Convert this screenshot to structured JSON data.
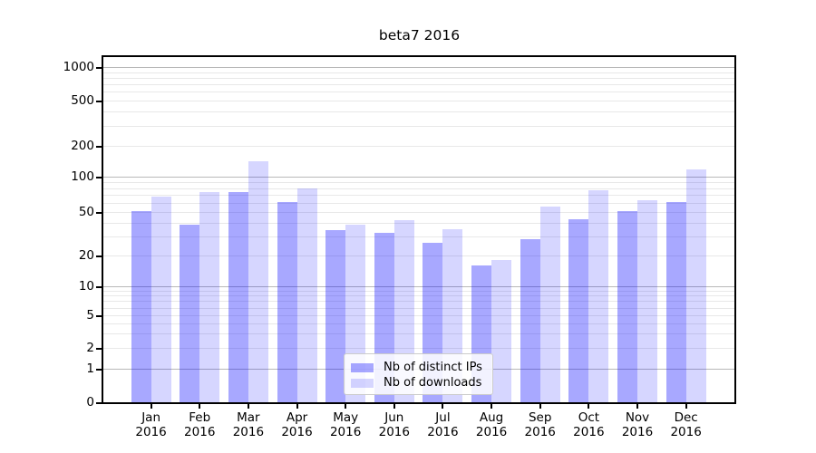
{
  "title": "beta7 2016",
  "legend": {
    "items": [
      {
        "label": "Nb of distinct IPs",
        "color": "rgba(0,0,255,0.34)"
      },
      {
        "label": "Nb of downloads",
        "color": "rgba(0,0,255,0.16)"
      }
    ]
  },
  "chart_data": {
    "type": "bar",
    "title": "beta7 2016",
    "categories": [
      "Jan",
      "Feb",
      "Mar",
      "Apr",
      "May",
      "Jun",
      "Jul",
      "Aug",
      "Sep",
      "Oct",
      "Nov",
      "Dec"
    ],
    "year_label": "2016",
    "series": [
      {
        "name": "Nb of distinct IPs",
        "color": "rgba(0,0,255,0.34)",
        "values": [
          51,
          38,
          74,
          61,
          34,
          32,
          26,
          16,
          28,
          43,
          51,
          61
        ]
      },
      {
        "name": "Nb of downloads",
        "color": "rgba(0,0,255,0.16)",
        "values": [
          68,
          74,
          140,
          80,
          38,
          42,
          35,
          18,
          56,
          76,
          63,
          118
        ]
      }
    ],
    "y_axis": {
      "scale": "symlog",
      "ticks": [
        0,
        1,
        2,
        5,
        10,
        20,
        50,
        100,
        200,
        500,
        1000
      ],
      "tick_labels": [
        "0",
        "1",
        "2",
        "5",
        "10",
        "20",
        "50",
        "100",
        "200",
        "500",
        "1000"
      ],
      "major_ticks": [
        1,
        10,
        100,
        1000
      ],
      "range": [
        0,
        1200
      ]
    },
    "x_axis": {
      "tick_line1": [
        "Jan",
        "Feb",
        "Mar",
        "Apr",
        "May",
        "Jun",
        "Jul",
        "Aug",
        "Sep",
        "Oct",
        "Nov",
        "Dec"
      ],
      "tick_line2": "2016"
    },
    "grid": true,
    "legend_position": "lower-center",
    "colors": {
      "major_grid": "#b8b8b8",
      "minor_grid": "#e8e8e8",
      "spine": "#000000",
      "background": "#ffffff"
    }
  }
}
